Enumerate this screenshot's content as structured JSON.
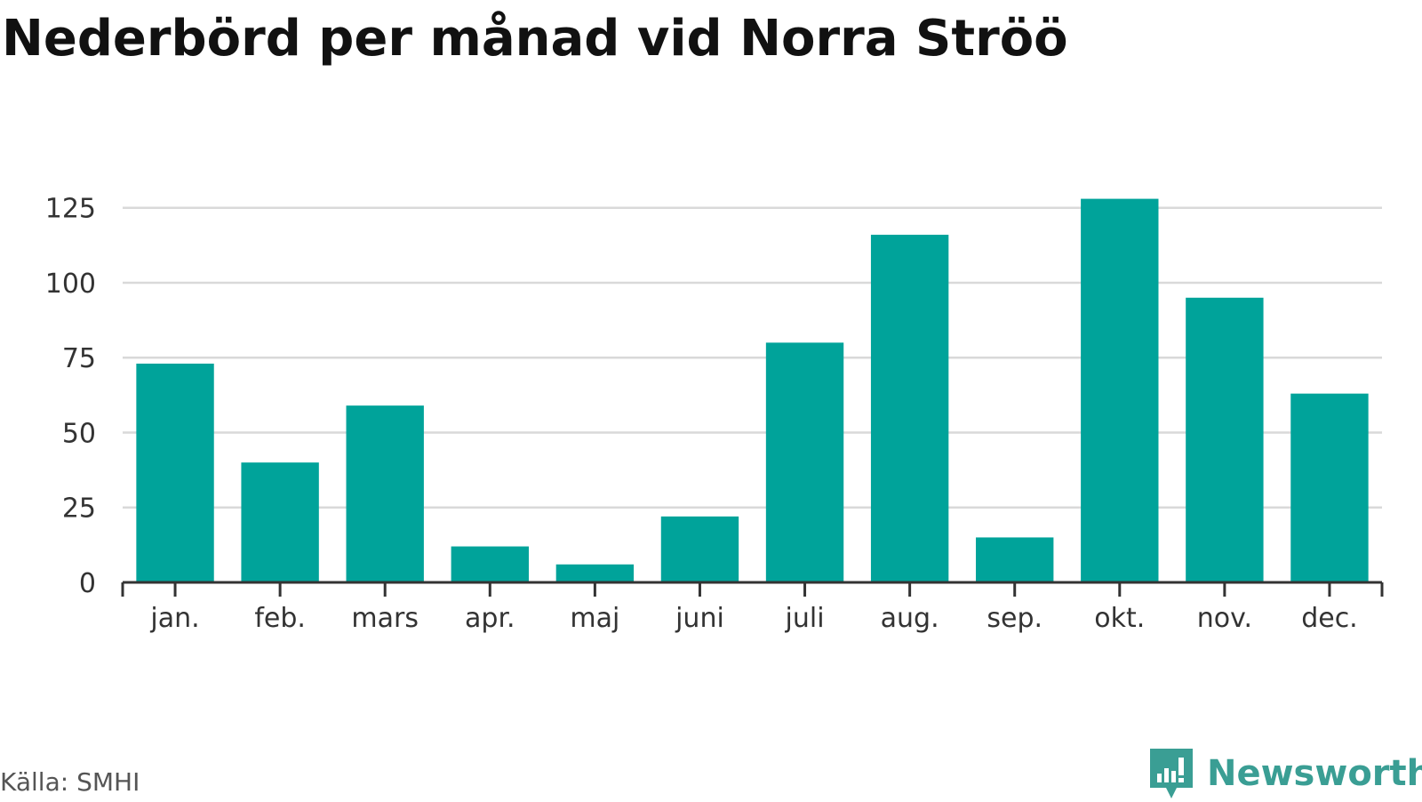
{
  "title": "Nederbörd per månad vid Norra Ströö",
  "source": "Källa: SMHI",
  "brand": {
    "name": "Newsworthy",
    "icon": "newsworthy-logo-icon",
    "color": "#3a9e94"
  },
  "colors": {
    "bar": "#00a39a",
    "grid": "#d9d9d9",
    "axis": "#333333",
    "text": "#333333"
  },
  "chart_data": {
    "type": "bar",
    "title": "Nederbörd per månad vid Norra Ströö",
    "xlabel": "",
    "ylabel": "",
    "categories": [
      "jan.",
      "feb.",
      "mars",
      "apr.",
      "maj",
      "juni",
      "juli",
      "aug.",
      "sep.",
      "okt.",
      "nov.",
      "dec."
    ],
    "values": [
      73,
      40,
      59,
      12,
      6,
      22,
      80,
      116,
      15,
      128,
      95,
      63
    ],
    "ylim": [
      0,
      135
    ],
    "yticks": [
      0,
      25,
      50,
      75,
      100,
      125
    ],
    "grid": true,
    "legend": "none"
  }
}
